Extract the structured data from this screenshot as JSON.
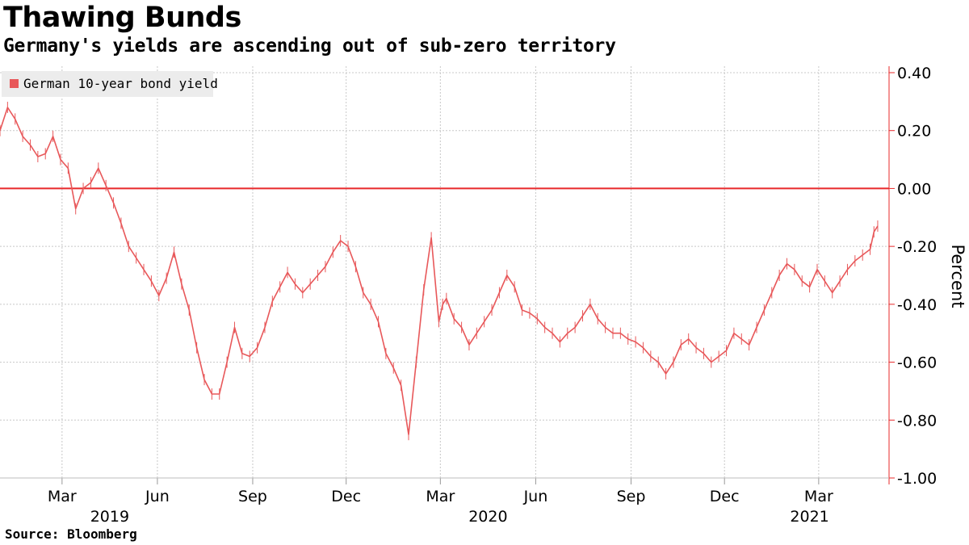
{
  "chart_data": {
    "type": "line",
    "title": "Thawing Bunds",
    "subtitle": "Germany's yields are ascending out of sub-zero territory",
    "source": "Source: Bloomberg",
    "ylabel": "Percent",
    "ylim": [
      -1.0,
      0.4
    ],
    "yticks": [
      0.4,
      0.2,
      0.0,
      -0.2,
      -0.4,
      -0.6,
      -0.8,
      -1.0
    ],
    "ytick_labels": [
      "0.40",
      "0.20",
      "0.00",
      "-0.20",
      "-0.40",
      "-0.60",
      "-0.80",
      "-1.00"
    ],
    "xlim": [
      2019.0,
      2021.35
    ],
    "xticks": [
      {
        "x": 2019.164,
        "label": "Mar"
      },
      {
        "x": 2019.416,
        "label": "Jun"
      },
      {
        "x": 2019.668,
        "label": "Sep"
      },
      {
        "x": 2019.915,
        "label": "Dec"
      },
      {
        "x": 2020.164,
        "label": "Mar"
      },
      {
        "x": 2020.416,
        "label": "Jun"
      },
      {
        "x": 2020.668,
        "label": "Sep"
      },
      {
        "x": 2020.915,
        "label": "Dec"
      },
      {
        "x": 2021.164,
        "label": "Mar"
      }
    ],
    "year_labels": [
      {
        "x": 2019.29,
        "label": "2019"
      },
      {
        "x": 2020.29,
        "label": "2020"
      },
      {
        "x": 2021.14,
        "label": "2021"
      }
    ],
    "reference_line": 0.0,
    "colors": {
      "series": "#e8585a",
      "zero_line": "#e8282a",
      "grid": "#c8c8c8"
    },
    "series": [
      {
        "name": "German 10-year bond yield",
        "x": [
          2019.0,
          2019.02,
          2019.04,
          2019.06,
          2019.08,
          2019.1,
          2019.12,
          2019.14,
          2019.16,
          2019.18,
          2019.2,
          2019.22,
          2019.24,
          2019.26,
          2019.28,
          2019.3,
          2019.32,
          2019.34,
          2019.36,
          2019.38,
          2019.4,
          2019.42,
          2019.44,
          2019.46,
          2019.48,
          2019.5,
          2019.52,
          2019.54,
          2019.56,
          2019.58,
          2019.6,
          2019.62,
          2019.64,
          2019.66,
          2019.68,
          2019.7,
          2019.72,
          2019.74,
          2019.76,
          2019.78,
          2019.8,
          2019.82,
          2019.84,
          2019.86,
          2019.88,
          2019.9,
          2019.92,
          2019.94,
          2019.96,
          2019.98,
          2020.0,
          2020.02,
          2020.04,
          2020.06,
          2020.08,
          2020.1,
          2020.12,
          2020.14,
          2020.16,
          2020.17,
          2020.18,
          2020.2,
          2020.22,
          2020.24,
          2020.26,
          2020.28,
          2020.3,
          2020.32,
          2020.34,
          2020.36,
          2020.38,
          2020.4,
          2020.42,
          2020.44,
          2020.46,
          2020.48,
          2020.5,
          2020.52,
          2020.54,
          2020.56,
          2020.58,
          2020.6,
          2020.62,
          2020.64,
          2020.66,
          2020.68,
          2020.7,
          2020.72,
          2020.74,
          2020.76,
          2020.78,
          2020.8,
          2020.82,
          2020.84,
          2020.86,
          2020.88,
          2020.9,
          2020.92,
          2020.94,
          2020.96,
          2020.98,
          2021.0,
          2021.02,
          2021.04,
          2021.06,
          2021.08,
          2021.1,
          2021.12,
          2021.14,
          2021.16,
          2021.18,
          2021.2,
          2021.22,
          2021.24,
          2021.26,
          2021.28,
          2021.3,
          2021.31,
          2021.32
        ],
        "values": [
          0.2,
          0.28,
          0.24,
          0.18,
          0.15,
          0.11,
          0.12,
          0.18,
          0.1,
          0.07,
          -0.07,
          0.0,
          0.02,
          0.07,
          0.01,
          -0.05,
          -0.12,
          -0.2,
          -0.24,
          -0.28,
          -0.32,
          -0.37,
          -0.31,
          -0.22,
          -0.33,
          -0.42,
          -0.55,
          -0.66,
          -0.71,
          -0.71,
          -0.6,
          -0.48,
          -0.57,
          -0.58,
          -0.55,
          -0.48,
          -0.39,
          -0.34,
          -0.29,
          -0.33,
          -0.36,
          -0.33,
          -0.3,
          -0.27,
          -0.22,
          -0.18,
          -0.2,
          -0.27,
          -0.36,
          -0.4,
          -0.46,
          -0.57,
          -0.62,
          -0.68,
          -0.85,
          -0.6,
          -0.35,
          -0.17,
          -0.46,
          -0.4,
          -0.38,
          -0.45,
          -0.48,
          -0.54,
          -0.5,
          -0.46,
          -0.42,
          -0.36,
          -0.3,
          -0.34,
          -0.42,
          -0.43,
          -0.45,
          -0.48,
          -0.5,
          -0.53,
          -0.5,
          -0.48,
          -0.44,
          -0.4,
          -0.45,
          -0.48,
          -0.5,
          -0.5,
          -0.52,
          -0.53,
          -0.55,
          -0.58,
          -0.6,
          -0.64,
          -0.6,
          -0.54,
          -0.52,
          -0.55,
          -0.57,
          -0.6,
          -0.58,
          -0.56,
          -0.5,
          -0.52,
          -0.54,
          -0.48,
          -0.42,
          -0.36,
          -0.3,
          -0.26,
          -0.28,
          -0.32,
          -0.34,
          -0.28,
          -0.32,
          -0.36,
          -0.32,
          -0.28,
          -0.25,
          -0.23,
          -0.21,
          -0.15,
          -0.13
        ]
      }
    ]
  }
}
